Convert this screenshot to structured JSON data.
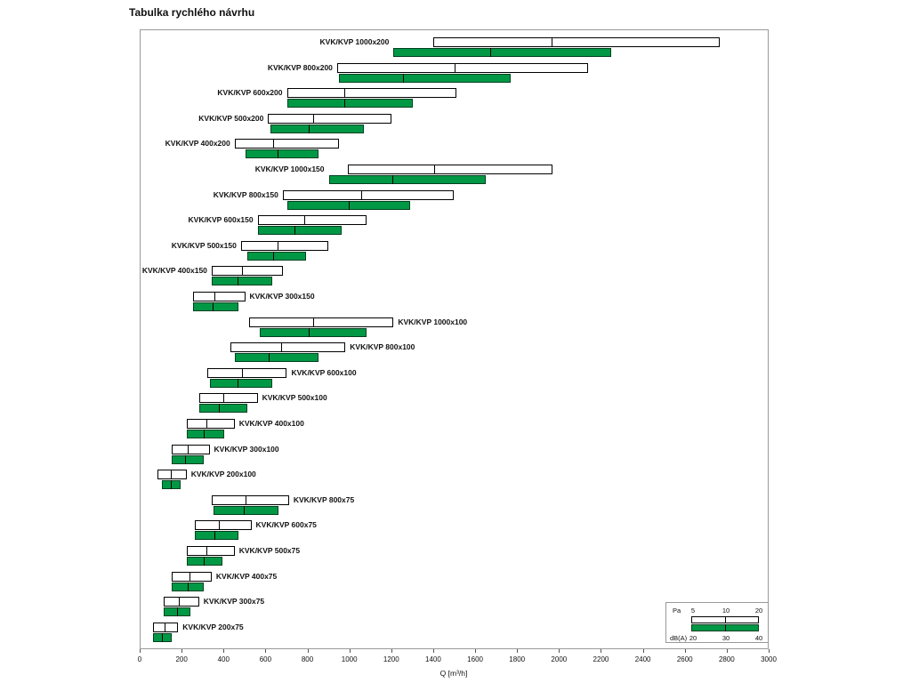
{
  "chart_data": {
    "type": "bar",
    "title": "Tabulka rychlého návrhu",
    "xlabel": "Q [m³/h]",
    "xlim": [
      0,
      3000
    ],
    "xticks": [
      0,
      200,
      400,
      600,
      800,
      1000,
      1200,
      1400,
      1600,
      1800,
      2000,
      2200,
      2400,
      2600,
      2800,
      3000
    ],
    "colors": {
      "green": "#009845",
      "pa_fill": "#ffffff",
      "border": "#000000"
    },
    "legend": {
      "pa_label": "Pa",
      "pa_values": [
        "5",
        "10",
        "20"
      ],
      "db_label": "dB(A)",
      "db_values": [
        "20",
        "30",
        "40"
      ]
    },
    "rows": [
      {
        "label": "KVK/KVP 1000x200",
        "side": "left",
        "pa": [
          1400,
          1960,
          2770
        ],
        "db": [
          1210,
          1670,
          2250
        ]
      },
      {
        "label": "KVK/KVP 800x200",
        "side": "left",
        "pa": [
          940,
          1500,
          2140
        ],
        "db": [
          950,
          1250,
          1770
        ]
      },
      {
        "label": "KVK/KVP 600x200",
        "side": "left",
        "pa": [
          700,
          970,
          1510
        ],
        "db": [
          700,
          970,
          1300
        ]
      },
      {
        "label": "KVK/KVP 500x200",
        "side": "left",
        "pa": [
          610,
          820,
          1200
        ],
        "db": [
          620,
          800,
          1070
        ]
      },
      {
        "label": "KVK/KVP 400x200",
        "side": "left",
        "pa": [
          450,
          630,
          950
        ],
        "db": [
          500,
          650,
          850
        ]
      },
      {
        "label": "KVK/KVP 1000x150",
        "side": "left",
        "pa": [
          990,
          1400,
          1970
        ],
        "db": [
          900,
          1200,
          1650
        ]
      },
      {
        "label": "KVK/KVP 800x150",
        "side": "left",
        "pa": [
          680,
          1050,
          1500
        ],
        "db": [
          700,
          990,
          1290
        ]
      },
      {
        "label": "KVK/KVP 600x150",
        "side": "left",
        "pa": [
          560,
          780,
          1080
        ],
        "db": [
          560,
          730,
          960
        ]
      },
      {
        "label": "KVK/KVP 500x150",
        "side": "left",
        "pa": [
          480,
          650,
          900
        ],
        "db": [
          510,
          630,
          790
        ]
      },
      {
        "label": "KVK/KVP 400x150",
        "side": "left",
        "pa": [
          340,
          480,
          680
        ],
        "db": [
          340,
          460,
          630
        ]
      },
      {
        "label": "KVK/KVP 300x150",
        "side": "right",
        "pa": [
          250,
          350,
          500
        ],
        "db": [
          250,
          340,
          470
        ]
      },
      {
        "label": "KVK/KVP 1000x100",
        "side": "right",
        "pa": [
          520,
          820,
          1210
        ],
        "db": [
          570,
          800,
          1080
        ]
      },
      {
        "label": "KVK/KVP 800x100",
        "side": "right",
        "pa": [
          430,
          670,
          980
        ],
        "db": [
          450,
          610,
          850
        ]
      },
      {
        "label": "KVK/KVP 600x100",
        "side": "right",
        "pa": [
          320,
          480,
          700
        ],
        "db": [
          330,
          460,
          630
        ]
      },
      {
        "label": "KVK/KVP 500x100",
        "side": "right",
        "pa": [
          280,
          390,
          560
        ],
        "db": [
          280,
          370,
          510
        ]
      },
      {
        "label": "KVK/KVP 400x100",
        "side": "right",
        "pa": [
          220,
          310,
          450
        ],
        "db": [
          220,
          300,
          400
        ]
      },
      {
        "label": "KVK/KVP 300x100",
        "side": "right",
        "pa": [
          150,
          220,
          330
        ],
        "db": [
          150,
          210,
          300
        ]
      },
      {
        "label": "KVK/KVP 200x100",
        "side": "right",
        "pa": [
          80,
          140,
          220
        ],
        "db": [
          100,
          140,
          190
        ]
      },
      {
        "label": "KVK/KVP 800x75",
        "side": "right",
        "pa": [
          340,
          500,
          710
        ],
        "db": [
          350,
          490,
          660
        ]
      },
      {
        "label": "KVK/KVP 600x75",
        "side": "right",
        "pa": [
          260,
          370,
          530
        ],
        "db": [
          260,
          350,
          470
        ]
      },
      {
        "label": "KVK/KVP 500x75",
        "side": "right",
        "pa": [
          220,
          310,
          450
        ],
        "db": [
          220,
          300,
          390
        ]
      },
      {
        "label": "KVK/KVP 400x75",
        "side": "right",
        "pa": [
          150,
          230,
          340
        ],
        "db": [
          150,
          220,
          300
        ]
      },
      {
        "label": "KVK/KVP 300x75",
        "side": "right",
        "pa": [
          110,
          180,
          280
        ],
        "db": [
          110,
          170,
          240
        ]
      },
      {
        "label": "KVK/KVP 200x75",
        "side": "right",
        "pa": [
          60,
          110,
          180
        ],
        "db": [
          60,
          100,
          150
        ]
      }
    ]
  }
}
